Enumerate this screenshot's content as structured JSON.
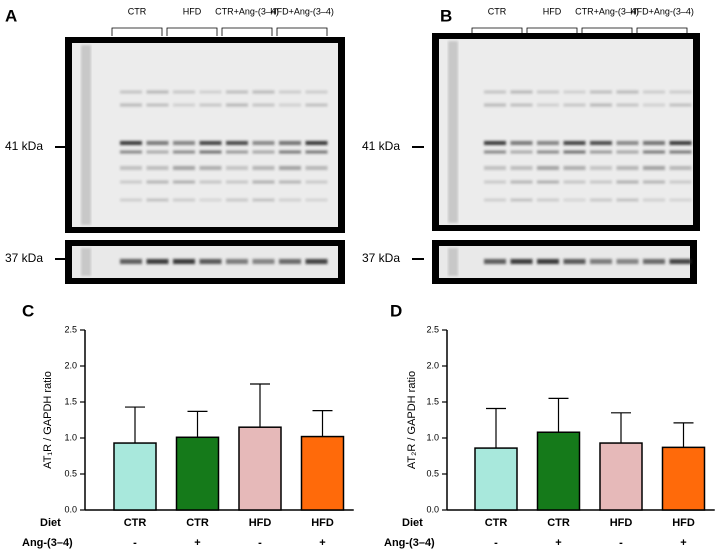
{
  "blots": [
    {
      "panel": "A",
      "groups": [
        "CTR",
        "HFD",
        "CTR+Ang-(3–4)",
        "HFD+Ang-(3–4)"
      ],
      "markers": [
        "41 kDa",
        "37 kDa"
      ]
    },
    {
      "panel": "B",
      "groups": [
        "CTR",
        "HFD",
        "CTR+Ang-(3–4)",
        "HFD+Ang-(3–4)"
      ],
      "markers": [
        "41 kDa",
        "37 kDa"
      ]
    }
  ],
  "chart_data": [
    {
      "type": "bar",
      "panel": "C",
      "y_label": "AT₁R / GAPDH ratio",
      "category_rows": [
        {
          "name": "Diet",
          "labels": [
            "CTR",
            "CTR",
            "HFD",
            "HFD"
          ]
        },
        {
          "name": "Ang-(3–4)",
          "labels": [
            "-",
            "+",
            "-",
            "+"
          ]
        }
      ],
      "values": [
        0.93,
        1.01,
        1.15,
        1.02
      ],
      "error": [
        0.5,
        0.36,
        0.6,
        0.36
      ],
      "colors": [
        "#a8e8dc",
        "#157a1a",
        "#e6b9b9",
        "#ff6a0a"
      ],
      "ylim": [
        0,
        2.5
      ],
      "yticks": [
        {
          "value": 0,
          "label": "0.0"
        },
        0.5,
        {
          "value": 1,
          "label": "1.0"
        },
        1.5,
        {
          "value": 2,
          "label": "2.0"
        },
        2.5
      ]
    },
    {
      "type": "bar",
      "panel": "D",
      "y_label": "AT₂R / GAPDH ratio",
      "category_rows": [
        {
          "name": "Diet",
          "labels": [
            "CTR",
            "CTR",
            "HFD",
            "HFD"
          ]
        },
        {
          "name": "Ang-(3–4)",
          "labels": [
            "-",
            "+",
            "-",
            "+"
          ]
        }
      ],
      "values": [
        0.86,
        1.08,
        0.93,
        0.87
      ],
      "error": [
        0.55,
        0.47,
        0.42,
        0.34
      ],
      "colors": [
        "#a8e8dc",
        "#157a1a",
        "#e6b9b9",
        "#ff6a0a"
      ],
      "ylim": [
        0,
        2.5
      ],
      "yticks": [
        {
          "value": 0,
          "label": "0.0"
        },
        0.5,
        {
          "value": 1,
          "label": "1.0"
        },
        1.5,
        {
          "value": 2,
          "label": "2.0"
        },
        2.5
      ]
    }
  ]
}
